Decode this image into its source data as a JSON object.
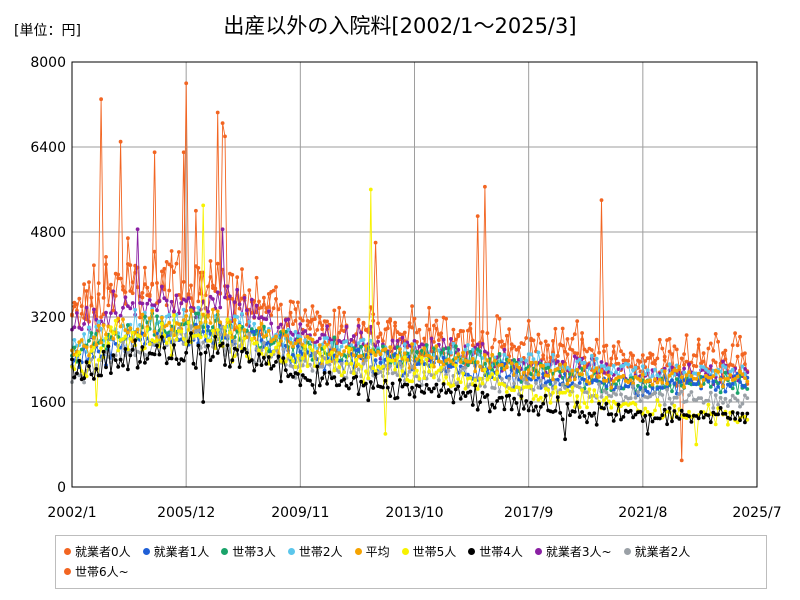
{
  "chart_data": {
    "type": "line",
    "unit_label": "[単位：円]",
    "title": "出産以外の入院料[2002/1～2025/3]",
    "x_ticks": [
      "2002/1",
      "2005/12",
      "2009/11",
      "2013/10",
      "2017/9",
      "2021/8",
      "2025/7"
    ],
    "y_ticks": [
      "0",
      "1600",
      "3200",
      "4800",
      "6400",
      "8000"
    ],
    "ylim": [
      0,
      8000
    ],
    "xlim": [
      "2002/1",
      "2025/7"
    ],
    "grid": true,
    "legend_position": "bottom",
    "series": [
      {
        "name": "就業者0人",
        "color": "#f26522",
        "anchors": [
          [
            "2002/1",
            3300
          ],
          [
            "2003/6",
            3900
          ],
          [
            "2005/12",
            4000
          ],
          [
            "2007/6",
            3500
          ],
          [
            "2009/11",
            3000
          ],
          [
            "2011/6",
            2950
          ],
          [
            "2013/10",
            2850
          ],
          [
            "2015/6",
            2850
          ],
          [
            "2017/9",
            2650
          ],
          [
            "2019/6",
            2600
          ],
          [
            "2021/8",
            2450
          ],
          [
            "2023/6",
            2500
          ],
          [
            "2025/3",
            2500
          ]
        ],
        "spikes": [
          [
            "2003/1",
            7300
          ],
          [
            "2005/12",
            7600
          ],
          [
            "2007/1",
            7050
          ],
          [
            "2007/3",
            6850
          ],
          [
            "2007/4",
            6600
          ],
          [
            "2012/6",
            4600
          ],
          [
            "2015/12",
            5100
          ],
          [
            "2016/3",
            5650
          ],
          [
            "2020/3",
            5400
          ],
          [
            "2022/12",
            500
          ]
        ]
      },
      {
        "name": "就業者1人",
        "color": "#1f5fd6",
        "anchors": [
          [
            "2002/1",
            2300
          ],
          [
            "2003/6",
            2650
          ],
          [
            "2005/12",
            2900
          ],
          [
            "2007/6",
            2850
          ],
          [
            "2009/11",
            2450
          ],
          [
            "2011/6",
            2400
          ],
          [
            "2013/10",
            2300
          ],
          [
            "2015/6",
            2250
          ],
          [
            "2017/9",
            2000
          ],
          [
            "2019/6",
            2000
          ],
          [
            "2021/8",
            1850
          ],
          [
            "2023/6",
            1950
          ],
          [
            "2025/3",
            1950
          ]
        ],
        "spikes": []
      },
      {
        "name": "世帯3人",
        "color": "#1aa36a",
        "anchors": [
          [
            "2002/1",
            2500
          ],
          [
            "2003/6",
            2850
          ],
          [
            "2005/12",
            3050
          ],
          [
            "2007/6",
            3000
          ],
          [
            "2009/11",
            2600
          ],
          [
            "2011/6",
            2550
          ],
          [
            "2013/10",
            2450
          ],
          [
            "2015/6",
            2400
          ],
          [
            "2017/9",
            2150
          ],
          [
            "2019/6",
            2050
          ],
          [
            "2021/8",
            1900
          ],
          [
            "2023/6",
            1950
          ],
          [
            "2025/3",
            1950
          ]
        ],
        "spikes": []
      },
      {
        "name": "世帯2人",
        "color": "#5bc6eb",
        "anchors": [
          [
            "2002/1",
            2600
          ],
          [
            "2003/6",
            2950
          ],
          [
            "2005/12",
            3100
          ],
          [
            "2007/6",
            3050
          ],
          [
            "2009/11",
            2700
          ],
          [
            "2011/6",
            2600
          ],
          [
            "2013/10",
            2500
          ],
          [
            "2015/6",
            2450
          ],
          [
            "2017/9",
            2300
          ],
          [
            "2019/6",
            2250
          ],
          [
            "2021/8",
            2150
          ],
          [
            "2023/6",
            2150
          ],
          [
            "2025/3",
            2150
          ]
        ],
        "spikes": []
      },
      {
        "name": "平均",
        "color": "#f5a300",
        "anchors": [
          [
            "2002/1",
            2600
          ],
          [
            "2003/6",
            2900
          ],
          [
            "2005/12",
            3050
          ],
          [
            "2007/6",
            3000
          ],
          [
            "2009/11",
            2650
          ],
          [
            "2011/6",
            2550
          ],
          [
            "2013/10",
            2450
          ],
          [
            "2015/6",
            2400
          ],
          [
            "2017/9",
            2200
          ],
          [
            "2019/6",
            2150
          ],
          [
            "2021/8",
            2000
          ],
          [
            "2023/6",
            2050
          ],
          [
            "2025/3",
            2050
          ]
        ],
        "spikes": []
      },
      {
        "name": "世帯5人",
        "color": "#f7f200",
        "anchors": [
          [
            "2002/1",
            2300
          ],
          [
            "2003/6",
            2700
          ],
          [
            "2005/12",
            2850
          ],
          [
            "2007/6",
            2750
          ],
          [
            "2009/11",
            2400
          ],
          [
            "2011/6",
            2300
          ],
          [
            "2013/10",
            2150
          ],
          [
            "2015/6",
            2050
          ],
          [
            "2017/9",
            1800
          ],
          [
            "2019/6",
            1700
          ],
          [
            "2021/8",
            1500
          ],
          [
            "2023/6",
            1350
          ],
          [
            "2025/3",
            1300
          ]
        ],
        "spikes": [
          [
            "2002/11",
            1550
          ],
          [
            "2006/7",
            5300
          ],
          [
            "2012/4",
            5600
          ],
          [
            "2012/10",
            1000
          ],
          [
            "2023/6",
            800
          ]
        ]
      },
      {
        "name": "世帯4人",
        "color": "#000000",
        "anchors": [
          [
            "2002/1",
            2100
          ],
          [
            "2003/6",
            2400
          ],
          [
            "2005/12",
            2600
          ],
          [
            "2007/6",
            2500
          ],
          [
            "2009/11",
            2100
          ],
          [
            "2011/6",
            1950
          ],
          [
            "2013/10",
            1800
          ],
          [
            "2015/6",
            1750
          ],
          [
            "2017/9",
            1550
          ],
          [
            "2019/6",
            1400
          ],
          [
            "2021/8",
            1350
          ],
          [
            "2023/6",
            1350
          ],
          [
            "2025/3",
            1400
          ]
        ],
        "spikes": [
          [
            "2006/7",
            1600
          ],
          [
            "2018/12",
            900
          ],
          [
            "2021/10",
            1000
          ]
        ]
      },
      {
        "name": "就業者3人~",
        "color": "#8a1fa3",
        "anchors": [
          [
            "2002/1",
            3000
          ],
          [
            "2003/6",
            3300
          ],
          [
            "2005/12",
            3500
          ],
          [
            "2007/6",
            3400
          ],
          [
            "2009/11",
            2900
          ],
          [
            "2011/6",
            2800
          ],
          [
            "2013/10",
            2650
          ],
          [
            "2015/6",
            2550
          ],
          [
            "2017/9",
            2300
          ],
          [
            "2019/6",
            2250
          ],
          [
            "2021/8",
            2100
          ],
          [
            "2023/6",
            2150
          ],
          [
            "2025/3",
            2150
          ]
        ],
        "spikes": [
          [
            "2004/4",
            4850
          ],
          [
            "2007/3",
            4850
          ]
        ]
      },
      {
        "name": "就業者2人",
        "color": "#9aa0a6",
        "anchors": [
          [
            "2002/1",
            2000
          ],
          [
            "2003/6",
            2500
          ],
          [
            "2005/12",
            2800
          ],
          [
            "2007/6",
            2700
          ],
          [
            "2009/11",
            2300
          ],
          [
            "2011/6",
            2200
          ],
          [
            "2013/10",
            2100
          ],
          [
            "2015/6",
            2050
          ],
          [
            "2017/9",
            1900
          ],
          [
            "2019/6",
            1800
          ],
          [
            "2021/8",
            1700
          ],
          [
            "2023/6",
            1650
          ],
          [
            "2025/3",
            1650
          ]
        ],
        "spikes": []
      },
      {
        "name": "世帯6人~",
        "color": "#f26522",
        "anchors": [
          [
            "2002/1",
            3300
          ],
          [
            "2003/6",
            3700
          ],
          [
            "2005/12",
            3800
          ],
          [
            "2007/6",
            3600
          ],
          [
            "2009/11",
            3000
          ],
          [
            "2011/6",
            2900
          ],
          [
            "2013/10",
            2800
          ],
          [
            "2015/6",
            2700
          ],
          [
            "2017/9",
            2450
          ],
          [
            "2019/6",
            2400
          ],
          [
            "2021/8",
            2250
          ],
          [
            "2023/6",
            2300
          ],
          [
            "2025/3",
            2300
          ]
        ],
        "spikes": [
          [
            "2003/9",
            6500
          ],
          [
            "2004/11",
            6300
          ],
          [
            "2005/11",
            6300
          ],
          [
            "2006/4",
            5200
          ]
        ]
      }
    ]
  }
}
